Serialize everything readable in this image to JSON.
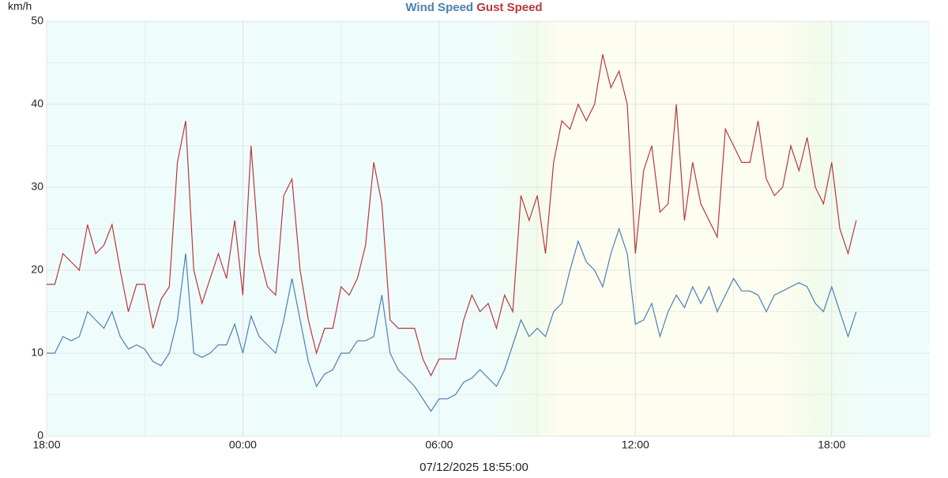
{
  "chart_data": {
    "type": "line",
    "y_label": "km/h",
    "x_label": "07/12/2025 18:55:00",
    "x": [
      0,
      0.25,
      0.5,
      0.75,
      1,
      1.25,
      1.5,
      1.75,
      2,
      2.25,
      2.5,
      2.75,
      3,
      3.25,
      3.5,
      3.75,
      4,
      4.25,
      4.5,
      4.75,
      5,
      5.25,
      5.5,
      5.75,
      6,
      6.25,
      6.5,
      6.75,
      7,
      7.25,
      7.5,
      7.75,
      8,
      8.25,
      8.5,
      8.75,
      9,
      9.25,
      9.5,
      9.75,
      10,
      10.25,
      10.5,
      10.75,
      11,
      11.25,
      11.5,
      11.75,
      12,
      12.25,
      12.5,
      12.75,
      13,
      13.25,
      13.5,
      13.75,
      14,
      14.25,
      14.5,
      14.75,
      15,
      15.25,
      15.5,
      15.75,
      16,
      16.25,
      16.5,
      16.75,
      17,
      17.25,
      17.5,
      17.75,
      18,
      18.25,
      18.5,
      18.75,
      19,
      19.25,
      19.5,
      19.75,
      20,
      20.25,
      20.5,
      20.75,
      21,
      21.25,
      21.5,
      21.75,
      22,
      22.25,
      22.5,
      22.75,
      23,
      23.25,
      23.5,
      23.75,
      24,
      24.25,
      24.5,
      24.75
    ],
    "series": [
      {
        "name": "Wind Speed",
        "color": "#4a80b4",
        "values": [
          10,
          10,
          12,
          11.5,
          12,
          15,
          14,
          13,
          15,
          12,
          10.5,
          11,
          10.5,
          9,
          8.5,
          10,
          14,
          22,
          10,
          9.5,
          10,
          11,
          11,
          13.5,
          10,
          14.5,
          12,
          11,
          10,
          14,
          19,
          14,
          9,
          6,
          7.5,
          8,
          10,
          10,
          11.5,
          11.5,
          12,
          17,
          10,
          8,
          7,
          6,
          4.5,
          3,
          4.5,
          4.5,
          5,
          6.5,
          7,
          8,
          7,
          6,
          8,
          11,
          14,
          12,
          13,
          12,
          15,
          16,
          20,
          23.5,
          21,
          20,
          18,
          22,
          25,
          22,
          13.5,
          14,
          16,
          12,
          15,
          17,
          15.5,
          18,
          16,
          18,
          15,
          17,
          19,
          17.5,
          17.5,
          17,
          15,
          17,
          17.5,
          18,
          18.5,
          18,
          16,
          15,
          18,
          15,
          12,
          15
        ]
      },
      {
        "name": "Gust Speed",
        "color": "#b8383c",
        "values": [
          18.3,
          18.3,
          22,
          21,
          20,
          25.5,
          22,
          23,
          25.5,
          20,
          15,
          18.3,
          18.3,
          13,
          16.5,
          18,
          33,
          38,
          20,
          16,
          19,
          22,
          19,
          26,
          17,
          35,
          22,
          18,
          17,
          29,
          31,
          20,
          14,
          10,
          13,
          13,
          18,
          17,
          19,
          23,
          33,
          28,
          14,
          13,
          13,
          13,
          9.3,
          7.3,
          9.3,
          9.3,
          9.3,
          14,
          17,
          15,
          16,
          13,
          17,
          15,
          29,
          26,
          29,
          22,
          33,
          38,
          37,
          40,
          38,
          40,
          46,
          42,
          44,
          40,
          22,
          32,
          35,
          27,
          28,
          40,
          26,
          33,
          28,
          26,
          24,
          37,
          35,
          33,
          33,
          38,
          31,
          29,
          30,
          35,
          32,
          36,
          30,
          28,
          33,
          25,
          22,
          26
        ]
      }
    ],
    "xlim": [
      0,
      27
    ],
    "xticks": [
      {
        "value": 0,
        "label": "18:00"
      },
      {
        "value": 6,
        "label": "00:00"
      },
      {
        "value": 12,
        "label": "06:00"
      },
      {
        "value": 18,
        "label": "12:00"
      },
      {
        "value": 24,
        "label": "18:00"
      }
    ],
    "ylim": [
      0,
      50
    ],
    "yticks": [
      0,
      10,
      20,
      30,
      40,
      50
    ],
    "grid": true
  }
}
